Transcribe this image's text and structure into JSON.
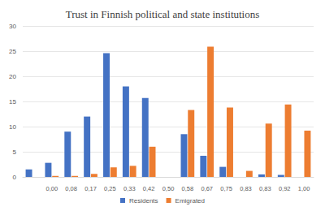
{
  "chart_data": {
    "type": "bar",
    "title": "Trust in Finnish political and state institutions",
    "categories": [
      null,
      "0,00",
      "0,08",
      "0,17",
      "0,25",
      "0,33",
      "0,42",
      "0,50",
      "0,58",
      "0,67",
      "0,75",
      "0,83",
      "0,83",
      "0,92",
      "1,00"
    ],
    "series": [
      {
        "name": "Residents",
        "color": "#4472c4",
        "values": [
          1.5,
          2.8,
          9,
          12,
          24.6,
          18,
          15.7,
          0,
          8.5,
          4.2,
          2,
          0,
          0.5,
          0.4,
          0
        ]
      },
      {
        "name": "Emigrated",
        "color": "#ed7d31",
        "values": [
          0,
          0.2,
          0.2,
          0.6,
          1.9,
          2.2,
          6,
          0,
          13.3,
          25.9,
          13.8,
          1.2,
          10.6,
          14.4,
          9.2
        ]
      }
    ],
    "ylim": [
      0,
      30
    ],
    "yticks": [
      0,
      5,
      10,
      15,
      20,
      25,
      30
    ],
    "grid": true,
    "legend": "bottom"
  }
}
